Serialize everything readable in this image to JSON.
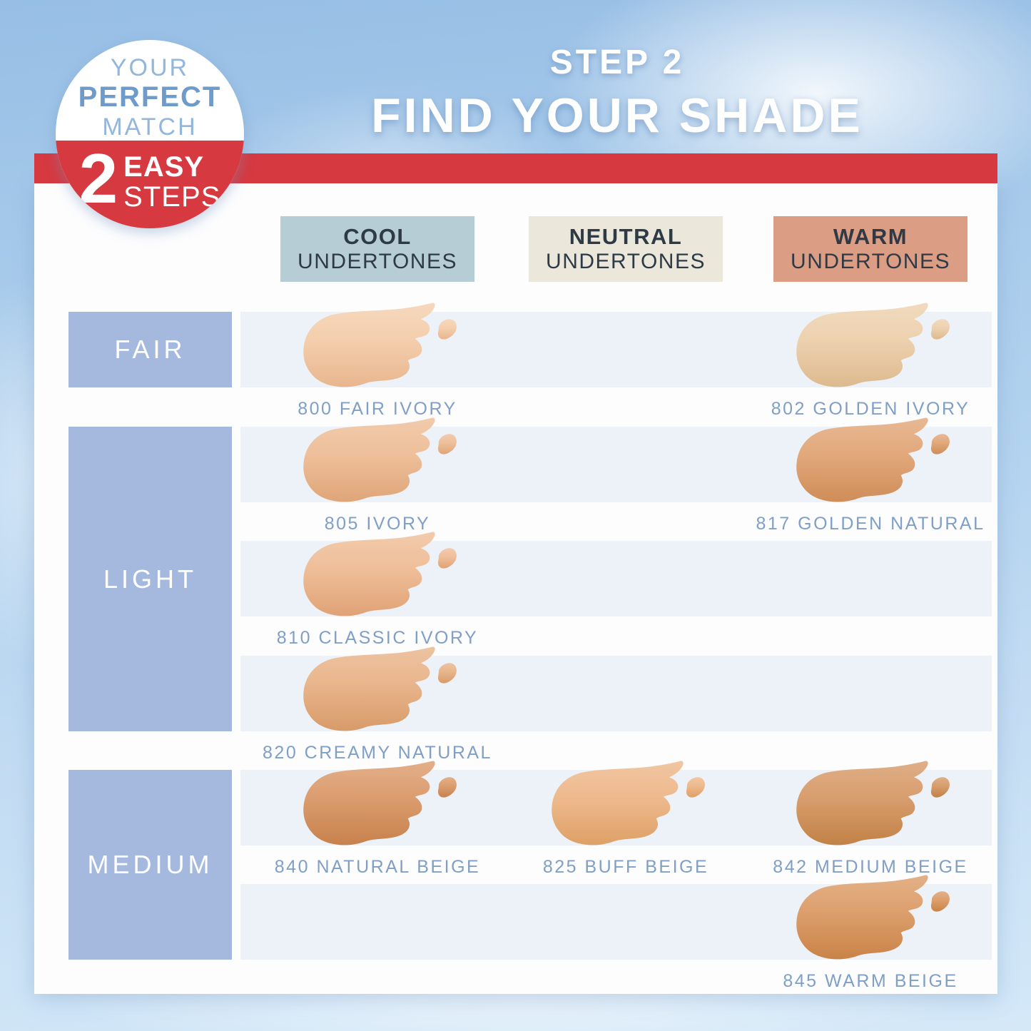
{
  "badge": {
    "line1": "YOUR",
    "line2": "PERFECT",
    "line3": "MATCH",
    "number": "2",
    "word1": "EASY",
    "word2": "STEPS"
  },
  "title": {
    "step": "STEP 2",
    "heading": "FIND YOUR SHADE"
  },
  "columns": [
    {
      "key": "cool",
      "title": "COOL",
      "subtitle": "UNDERTONES",
      "bg": "#b7cdd6"
    },
    {
      "key": "neutral",
      "title": "NEUTRAL",
      "subtitle": "UNDERTONES",
      "bg": "#ebe8db"
    },
    {
      "key": "warm",
      "title": "WARM",
      "subtitle": "UNDERTONES",
      "bg": "#db9d83"
    }
  ],
  "row_groups": [
    {
      "label": "FAIR",
      "band_start": 0,
      "band_end": 0
    },
    {
      "label": "LIGHT",
      "band_start": 1,
      "band_end": 3
    },
    {
      "label": "MEDIUM",
      "band_start": 4,
      "band_end": 5
    }
  ],
  "shades": [
    {
      "name": "800 FAIR IVORY",
      "column": "cool",
      "band": 0,
      "color": "#f4cfae",
      "shade": "#e8b68e"
    },
    {
      "name": "802 GOLDEN IVORY",
      "column": "warm",
      "band": 0,
      "color": "#edd2b0",
      "shade": "#ddba8e"
    },
    {
      "name": "805 IVORY",
      "column": "cool",
      "band": 1,
      "color": "#eec09b",
      "shade": "#dfa578"
    },
    {
      "name": "817 GOLDEN NATURAL",
      "column": "warm",
      "band": 1,
      "color": "#e2a97c",
      "shade": "#cf8d58"
    },
    {
      "name": "810 CLASSIC IVORY",
      "column": "cool",
      "band": 2,
      "color": "#efbf9a",
      "shade": "#e0a276"
    },
    {
      "name": "820 CREAMY NATURAL",
      "column": "cool",
      "band": 3,
      "color": "#e9b68d",
      "shade": "#d89b69"
    },
    {
      "name": "840 NATURAL BEIGE",
      "column": "cool",
      "band": 4,
      "color": "#dc9e70",
      "shade": "#c7814c"
    },
    {
      "name": "825 BUFF BEIGE",
      "column": "neutral",
      "band": 4,
      "color": "#eeba8e",
      "shade": "#dea066"
    },
    {
      "name": "842 MEDIUM BEIGE",
      "column": "warm",
      "band": 4,
      "color": "#d89e6e",
      "shade": "#c28247"
    },
    {
      "name": "845 WARM BEIGE",
      "column": "warm",
      "band": 5,
      "color": "#dda06e",
      "shade": "#c98347"
    }
  ],
  "theme": {
    "red": "#d63940",
    "sky_top": "#97bee5",
    "sky_bottom": "#d4e8f8",
    "panel": "#fdfdfe",
    "band": "#edf2f9",
    "row_label_bg": "#a5b9de",
    "shade_label_text": "#7f9fc6",
    "header_text": "#2e3a46",
    "badge_light_blue": "#93b6db",
    "badge_bold_blue": "#6e9bc9"
  }
}
